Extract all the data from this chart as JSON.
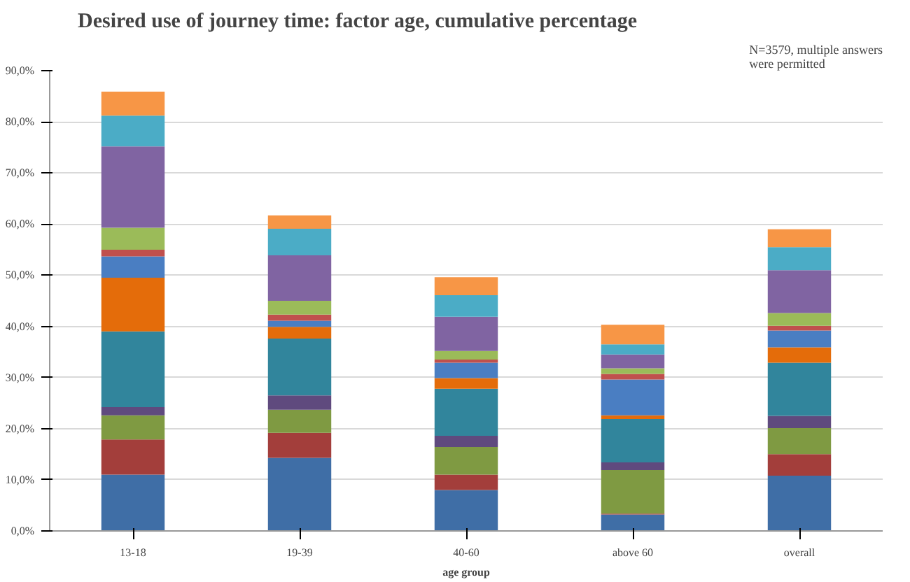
{
  "chart_data": {
    "type": "bar",
    "stacked": true,
    "title": "Desired use of journey time: factor age, cumulative percentage",
    "xlabel": "age group",
    "annotations": [
      "N=3579, multiple answers\nwere permitted"
    ],
    "categories": [
      "13-18",
      "19-39",
      "40-60",
      "above 60",
      "overall"
    ],
    "ylim": [
      0,
      90
    ],
    "yticks": [
      {
        "value": 0,
        "label": "0,0%"
      },
      {
        "value": 10,
        "label": "10,0%"
      },
      {
        "value": 20,
        "label": "20,0%"
      },
      {
        "value": 30,
        "label": "30,0%"
      },
      {
        "value": 40,
        "label": "40,0%"
      },
      {
        "value": 50,
        "label": "50,0%"
      },
      {
        "value": 60,
        "label": "60,0%"
      },
      {
        "value": 70,
        "label": "70,0%"
      },
      {
        "value": 80,
        "label": "80,0%"
      },
      {
        "value": 90,
        "label": "90,0%"
      }
    ],
    "grid": "y",
    "series": [
      {
        "color": "#3f6ea6",
        "values": [
          11.0,
          14.3,
          8.0,
          3.2,
          10.8
        ]
      },
      {
        "color": "#a33e3b",
        "values": [
          6.9,
          4.9,
          3.0,
          0.2,
          4.2
        ]
      },
      {
        "color": "#7f9a42",
        "values": [
          4.7,
          4.5,
          5.4,
          8.5,
          5.1
        ]
      },
      {
        "color": "#5f4a7e",
        "values": [
          1.6,
          2.8,
          2.2,
          1.5,
          2.4
        ]
      },
      {
        "color": "#31859c",
        "values": [
          14.8,
          11.1,
          9.2,
          8.5,
          10.4
        ]
      },
      {
        "color": "#e46c0a",
        "values": [
          10.5,
          2.3,
          2.1,
          0.7,
          3.0
        ]
      },
      {
        "color": "#4a7ec2",
        "values": [
          4.2,
          1.2,
          3.0,
          7.0,
          3.3
        ]
      },
      {
        "color": "#c0504d",
        "values": [
          1.3,
          1.2,
          0.6,
          1.1,
          0.9
        ]
      },
      {
        "color": "#9bbb59",
        "values": [
          4.3,
          2.7,
          1.7,
          1.1,
          2.5
        ]
      },
      {
        "color": "#8064a2",
        "values": [
          15.9,
          8.9,
          6.7,
          2.7,
          8.4
        ]
      },
      {
        "color": "#4bacc6",
        "values": [
          6.0,
          5.2,
          4.2,
          2.0,
          4.5
        ]
      },
      {
        "color": "#f79646",
        "values": [
          4.7,
          2.6,
          3.5,
          3.8,
          3.5
        ]
      }
    ]
  }
}
